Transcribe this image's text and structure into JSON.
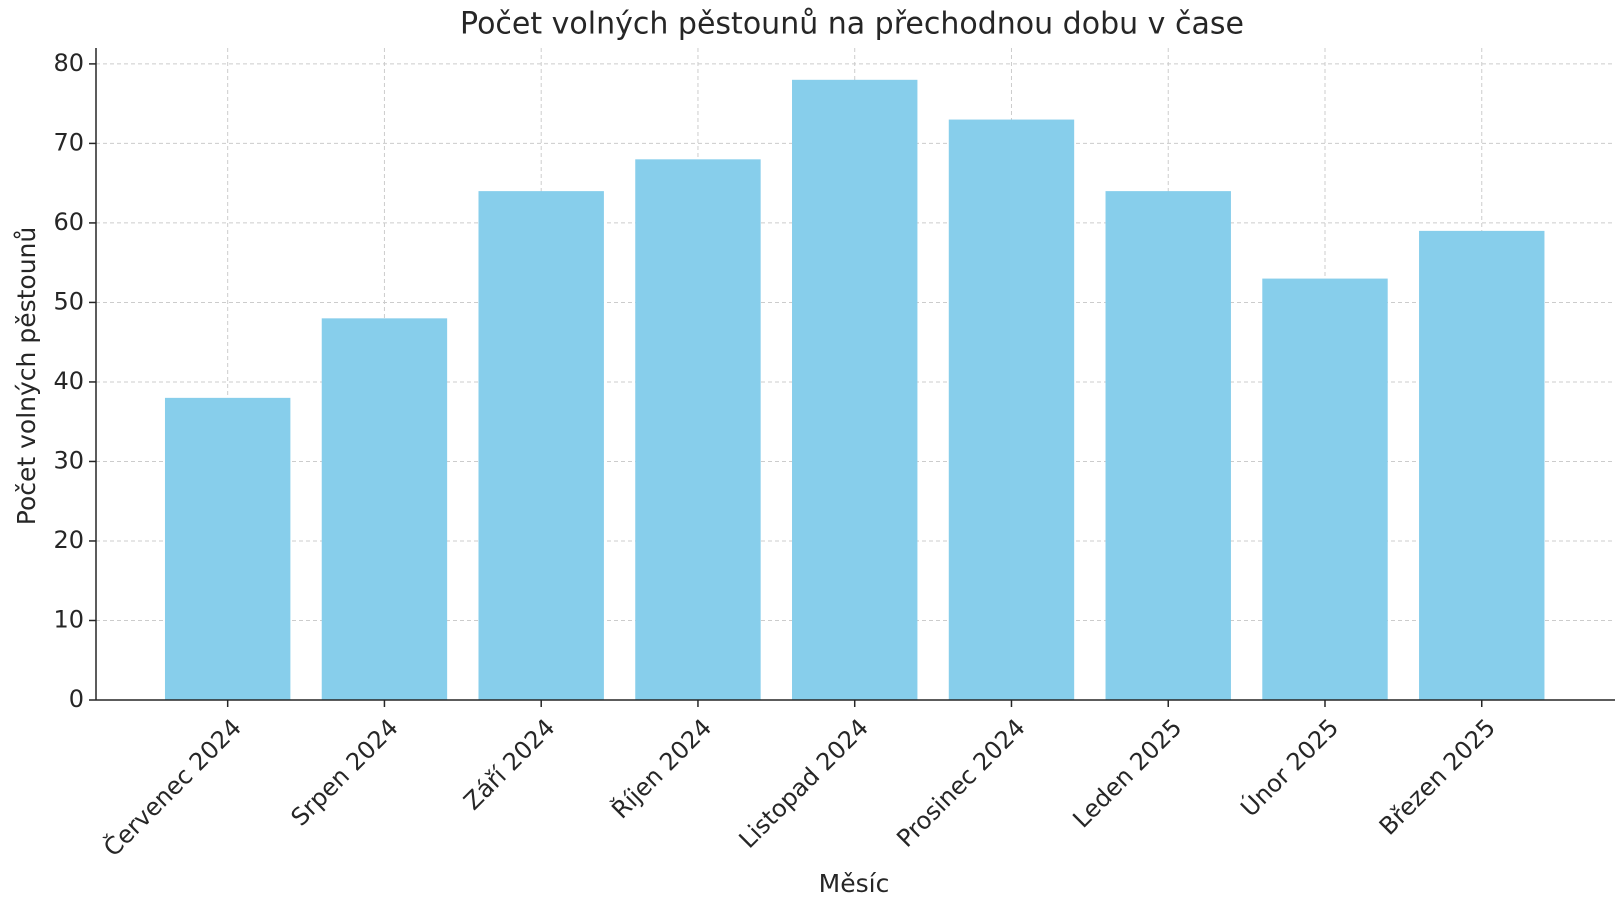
{
  "chart_data": {
    "type": "bar",
    "title": "Počet volných pěstounů na přechodnou dobu v čase",
    "x_label": "Měsíc",
    "y_label": "Počet volných pěstounů",
    "categories": [
      "Červenec 2024",
      "Srpen 2024",
      "Září 2024",
      "Říjen 2024",
      "Listopad 2024",
      "Prosinec 2024",
      "Leden 2025",
      "Únor 2025",
      "Březen 2025"
    ],
    "values": [
      38,
      48,
      64,
      68,
      78,
      73,
      64,
      53,
      59
    ],
    "color": "#87ceeb",
    "ylim": [
      0,
      82
    ],
    "yticks": [
      0,
      10,
      20,
      30,
      40,
      50,
      60,
      70,
      80
    ],
    "grid": true
  }
}
